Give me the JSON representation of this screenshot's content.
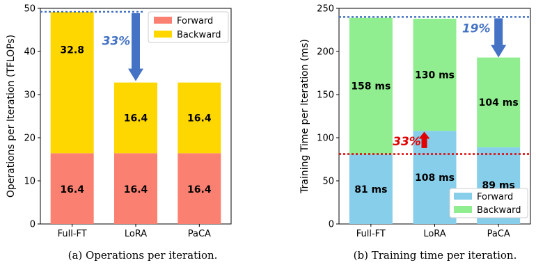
{
  "chart_data": [
    {
      "type": "bar",
      "stacked": true,
      "categories": [
        "Full-FT",
        "LoRA",
        "PaCA"
      ],
      "series": [
        {
          "name": "Forward",
          "values": [
            16.4,
            16.4,
            16.4
          ],
          "color": "#FA8072"
        },
        {
          "name": "Backward",
          "values": [
            32.8,
            16.4,
            16.4
          ],
          "color": "#FFD700"
        }
      ],
      "segment_labels": {
        "Forward": [
          "16.4",
          "16.4",
          "16.4"
        ],
        "Backward": [
          "32.8",
          "16.4",
          "16.4"
        ]
      },
      "ylabel": "Operations per Iteration (TFLOPs)",
      "ylim": [
        0,
        50
      ],
      "yticks": [
        0,
        10,
        20,
        30,
        40,
        50
      ],
      "legend": {
        "position": "top-right",
        "entries": [
          "Forward",
          "Backward"
        ]
      },
      "reference_line": {
        "y": 49.2,
        "color": "#4472C4"
      },
      "arrow": {
        "from": 49.2,
        "to": 32.8,
        "at_category": "LoRA",
        "color": "#4472C4"
      },
      "annotation": {
        "text": "33%",
        "color": "#4472C4"
      },
      "caption": "(a) Operations per iteration."
    },
    {
      "type": "bar",
      "stacked": true,
      "categories": [
        "Full-FT",
        "LoRA",
        "PaCA"
      ],
      "series": [
        {
          "name": "Forward",
          "values": [
            81,
            108,
            89
          ],
          "color": "#87CEEB"
        },
        {
          "name": "Backward",
          "values": [
            158,
            130,
            104
          ],
          "color": "#90EE90"
        }
      ],
      "segment_labels": {
        "Forward": [
          "81 ms",
          "108 ms",
          "89 ms"
        ],
        "Backward": [
          "158 ms",
          "130 ms",
          "104 ms"
        ]
      },
      "ylabel": "Training Time per Iteration (ms)",
      "ylim": [
        0,
        250
      ],
      "yticks": [
        0,
        50,
        100,
        150,
        200,
        250
      ],
      "legend": {
        "position": "bottom-right",
        "entries": [
          "Forward",
          "Backward"
        ]
      },
      "reference_lines": [
        {
          "y": 240,
          "color": "#4472C4"
        },
        {
          "y": 81,
          "color": "#E00000"
        }
      ],
      "arrows": [
        {
          "from": 240,
          "to": 193,
          "at_category": "PaCA",
          "color": "#4472C4"
        },
        {
          "from": 88,
          "to": 107,
          "at_category": "LoRA",
          "color": "#E00000"
        }
      ],
      "annotations": [
        {
          "text": "19%",
          "color": "#4472C4"
        },
        {
          "text": "33%",
          "color": "#E00000"
        }
      ],
      "caption": "(b) Training time per iteration."
    }
  ]
}
